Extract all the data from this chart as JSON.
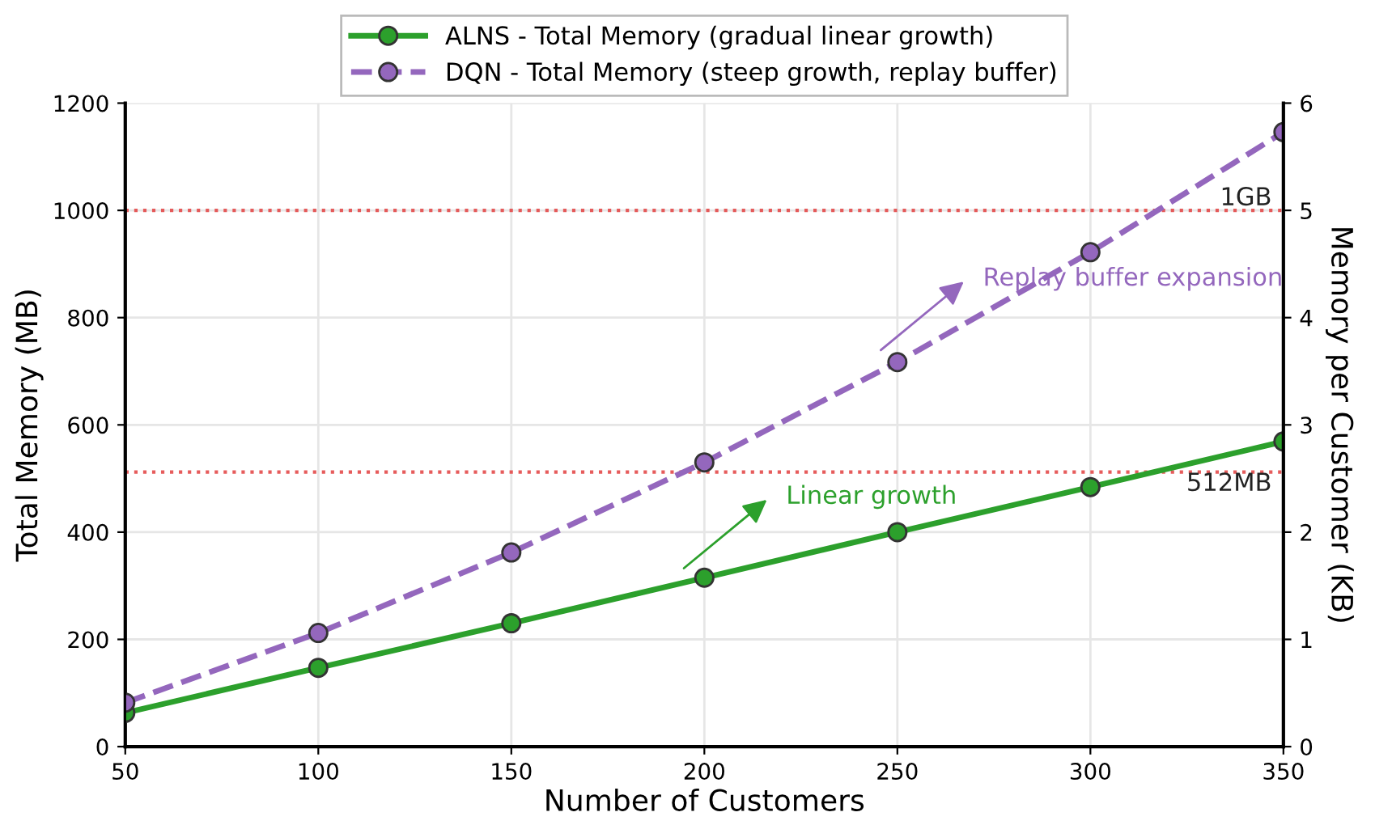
{
  "chart_data": {
    "type": "line",
    "xlabel": "Number of Customers",
    "ylabel": "Total Memory (MB)",
    "y2label": "Memory per Customer (KB)",
    "x": [
      50,
      100,
      150,
      200,
      250,
      300,
      350
    ],
    "series": [
      {
        "name": "ALNS - Total Memory (gradual linear growth)",
        "color": "#2ca02c",
        "line_style": "solid",
        "values": [
          63,
          147,
          230,
          315,
          400,
          484,
          569
        ]
      },
      {
        "name": "DQN - Total Memory (steep growth, replay buffer)",
        "color": "#9467bd",
        "line_style": "dashed",
        "values": [
          82,
          212,
          362,
          530,
          717,
          922,
          1146
        ]
      }
    ],
    "marker": "circle",
    "xlim": [
      50,
      350
    ],
    "xticks": [
      50,
      100,
      150,
      200,
      250,
      300,
      350
    ],
    "ylim": [
      0,
      1200
    ],
    "yticks": [
      0,
      200,
      400,
      600,
      800,
      1000,
      1200
    ],
    "y2lim": [
      0,
      6
    ],
    "y2ticks": [
      0,
      1,
      2,
      3,
      4,
      5,
      6
    ],
    "ref_lines": [
      {
        "axis": "y",
        "value": 1000,
        "label": "1GB",
        "color": "#e34a4a",
        "line_style": "dotted"
      },
      {
        "axis": "y",
        "value": 512,
        "label": "512MB",
        "color": "#e34a4a",
        "line_style": "dotted"
      }
    ],
    "annotations": [
      "Linear growth",
      "Replay buffer expansion"
    ],
    "grid": true,
    "legend": "top"
  }
}
